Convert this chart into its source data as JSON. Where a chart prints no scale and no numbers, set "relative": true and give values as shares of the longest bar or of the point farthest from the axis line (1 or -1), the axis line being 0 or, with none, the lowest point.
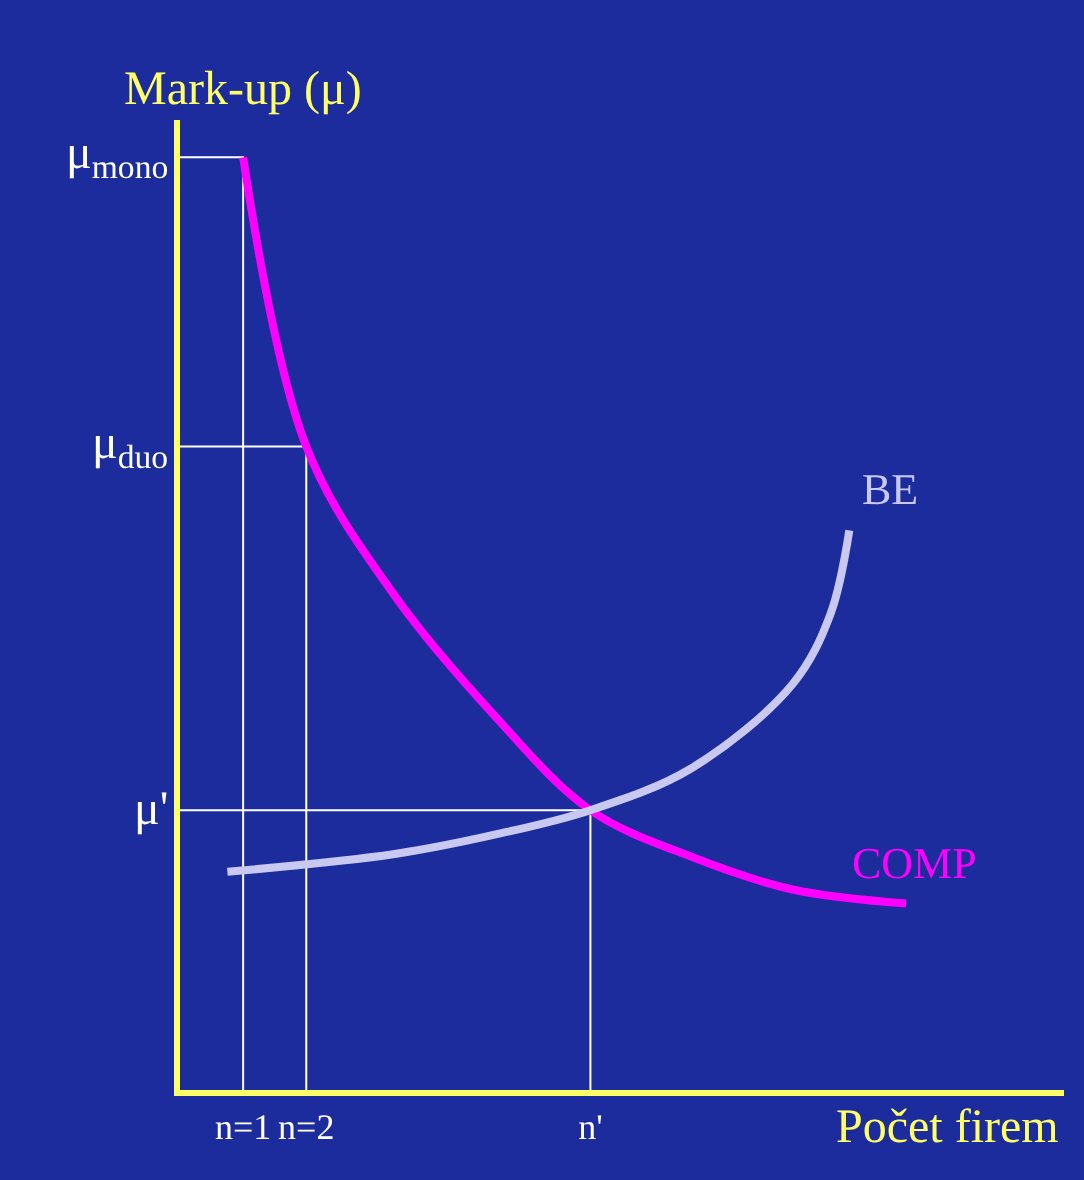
{
  "chart_data": {
    "type": "line",
    "relative": true,
    "xlabel": "Počet firem",
    "ylabel": "Mark-up (μ)",
    "xlim": [
      0,
      14
    ],
    "xticks": [
      {
        "value": 1,
        "label": "n=1"
      },
      {
        "value": 2,
        "label": "n=2"
      },
      {
        "value": 6.5,
        "label": "n'"
      }
    ],
    "series": [
      {
        "name": "COMP",
        "color": "#ff00ff",
        "x": [
          1,
          2,
          3.4,
          5.0,
          6.5,
          8.1,
          9.7,
          11.5
        ],
        "values": [
          1,
          0.69,
          0.53,
          0.4,
          0.3,
          0.25,
          0.215,
          0.2
        ]
      },
      {
        "name": "BE",
        "color": "#c8c8f0",
        "x": [
          0.75,
          3.4,
          5.0,
          6.5,
          8.1,
          9.7,
          10.3,
          10.6
        ],
        "values": [
          0.234,
          0.253,
          0.274,
          0.3,
          0.345,
          0.435,
          0.51,
          0.6
        ]
      }
    ],
    "ref_lines": [
      {
        "axis": "y",
        "value": 1,
        "label": "μ$_{mono}$",
        "color": "#ffffff"
      },
      {
        "axis": "y",
        "value": 0.69,
        "label": "μ$_{duo}$",
        "color": "#ffffff"
      },
      {
        "axis": "y",
        "value": 0.3,
        "label": "μ'",
        "color": "#ffffff"
      }
    ]
  }
}
